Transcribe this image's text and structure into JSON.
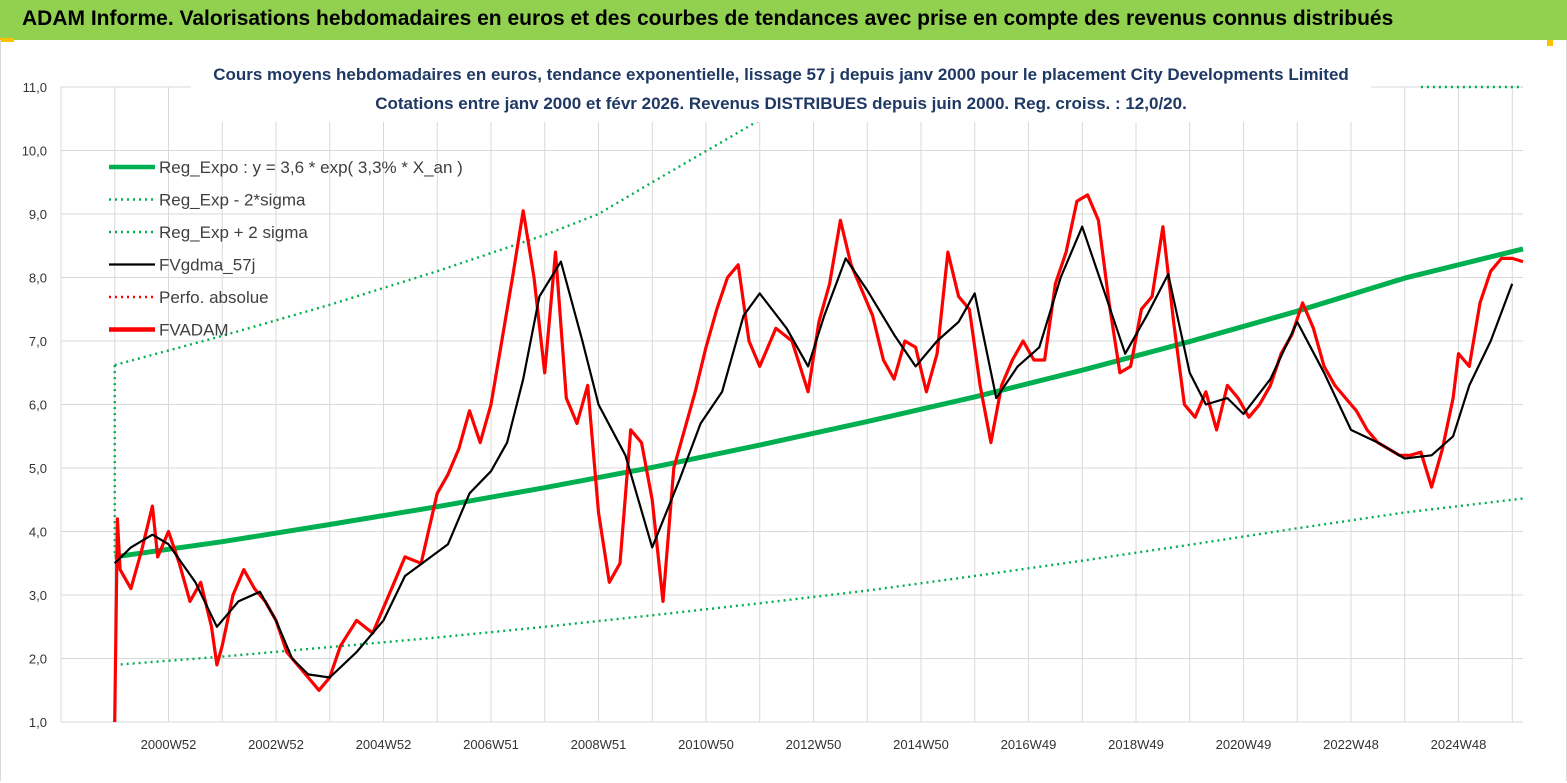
{
  "header": {
    "title": "ADAM Informe. Valorisations hebdomadaires en euros et des courbes de tendances avec prise en compte des revenus connus distribués"
  },
  "colors": {
    "banner": "#92d050",
    "accent": "#ffc000",
    "trend": "#00b050",
    "smooth": "#000000",
    "price": "#ff0000",
    "grid": "#d9d9d9"
  },
  "chart_data": {
    "type": "line",
    "title": "Cours moyens hebdomadaires en euros, tendance exponentielle, lissage 57 j depuis janv 2000  pour le placement City Developments Limited",
    "subtitle": "Cotations entre janv 2000 et févr 2026. Revenus DISTRIBUES depuis juin 2000. Reg. croiss. : 12,0/20.",
    "xlabel": "",
    "ylabel": "",
    "ylim": [
      1,
      11
    ],
    "xlim": [
      1999.0,
      2026.2
    ],
    "grid": true,
    "legend_position": "top-left",
    "y_ticks": [
      "1,0",
      "2,0",
      "3,0",
      "4,0",
      "5,0",
      "6,0",
      "7,0",
      "8,0",
      "9,0",
      "10,0",
      "11,0"
    ],
    "x_ticks": [
      {
        "label": "2000W52",
        "x": 2001.0
      },
      {
        "label": "2002W52",
        "x": 2003.0
      },
      {
        "label": "2004W52",
        "x": 2005.0
      },
      {
        "label": "2006W51",
        "x": 2007.0
      },
      {
        "label": "2008W51",
        "x": 2009.0
      },
      {
        "label": "2010W50",
        "x": 2011.0
      },
      {
        "label": "2012W50",
        "x": 2013.0
      },
      {
        "label": "2014W50",
        "x": 2015.0
      },
      {
        "label": "2016W49",
        "x": 2017.0
      },
      {
        "label": "2018W49",
        "x": 2019.0
      },
      {
        "label": "2020W49",
        "x": 2021.0
      },
      {
        "label": "2022W48",
        "x": 2023.0
      },
      {
        "label": "2024W48",
        "x": 2025.0
      }
    ],
    "series": [
      {
        "name": "Reg_Expo : y = 3,6 * exp( 3,3% *  X_an )",
        "style": "solid-thick",
        "color": "#00b050",
        "x": [
          2000.0,
          2002.0,
          2004.0,
          2006.0,
          2008.0,
          2010.0,
          2012.0,
          2014.0,
          2016.0,
          2018.0,
          2020.0,
          2022.0,
          2024.0,
          2026.2
        ],
        "y": [
          3.6,
          3.84,
          4.11,
          4.39,
          4.69,
          5.01,
          5.36,
          5.73,
          6.12,
          6.54,
          6.99,
          7.47,
          7.99,
          8.45
        ]
      },
      {
        "name": "Reg_Exp - 2*sigma",
        "style": "dotted",
        "color": "#00b050",
        "x": [
          2000.0,
          2002.0,
          2004.0,
          2006.0,
          2008.0,
          2010.0,
          2012.0,
          2014.0,
          2016.0,
          2018.0,
          2020.0,
          2022.0,
          2024.0,
          2026.2
        ],
        "y": [
          1.9,
          2.03,
          2.18,
          2.33,
          2.5,
          2.68,
          2.87,
          3.07,
          3.3,
          3.54,
          3.79,
          4.05,
          4.3,
          4.52
        ]
      },
      {
        "name": "Reg_Exp + 2 sigma",
        "style": "dotted",
        "color": "#00b050",
        "x": [
          2000.0,
          2002.0,
          2004.0,
          2006.0,
          2008.0,
          2009.0,
          2010.0,
          2011.0,
          2012.0,
          2013.0,
          2014.0
        ],
        "y": [
          6.62,
          7.08,
          7.57,
          8.1,
          8.67,
          9.0,
          9.5,
          9.99,
          10.48,
          10.97,
          11.45
        ],
        "x_right": [
          2024.3,
          2026.2
        ],
        "y_right": [
          11.0,
          11.0
        ]
      },
      {
        "name": "FVgdma_57j",
        "style": "solid",
        "color": "#000000",
        "x": [
          2000.0,
          2000.3,
          2000.7,
          2001.0,
          2001.5,
          2001.9,
          2002.3,
          2002.7,
          2003.0,
          2003.3,
          2003.6,
          2004.0,
          2004.5,
          2005.0,
          2005.4,
          2005.8,
          2006.2,
          2006.6,
          2007.0,
          2007.3,
          2007.6,
          2007.9,
          2008.3,
          2008.7,
          2009.0,
          2009.5,
          2010.0,
          2010.5,
          2010.9,
          2011.3,
          2011.7,
          2012.0,
          2012.5,
          2012.9,
          2013.2,
          2013.6,
          2014.0,
          2014.5,
          2014.9,
          2015.3,
          2015.7,
          2016.0,
          2016.4,
          2016.8,
          2017.2,
          2017.6,
          2018.0,
          2018.4,
          2018.8,
          2019.2,
          2019.6,
          2020.0,
          2020.3,
          2020.7,
          2021.0,
          2021.5,
          2022.0,
          2022.5,
          2023.0,
          2023.5,
          2024.0,
          2024.5,
          2024.9,
          2025.2,
          2025.6,
          2026.0
        ],
        "y": [
          3.5,
          3.75,
          3.95,
          3.8,
          3.2,
          2.5,
          2.9,
          3.05,
          2.6,
          2.0,
          1.75,
          1.7,
          2.1,
          2.6,
          3.3,
          3.55,
          3.8,
          4.6,
          4.95,
          5.4,
          6.4,
          7.7,
          8.25,
          7.0,
          6.0,
          5.2,
          3.75,
          4.8,
          5.7,
          6.2,
          7.4,
          7.75,
          7.2,
          6.6,
          7.4,
          8.3,
          7.8,
          7.1,
          6.6,
          7.0,
          7.3,
          7.75,
          6.1,
          6.6,
          6.9,
          8.0,
          8.8,
          7.8,
          6.8,
          7.4,
          8.05,
          6.5,
          6.0,
          6.1,
          5.85,
          6.4,
          7.3,
          6.5,
          5.6,
          5.4,
          5.15,
          5.2,
          5.5,
          6.3,
          7.0,
          7.9
        ]
      },
      {
        "name": "Perfo. absolue",
        "style": "dotted",
        "color": "#ff0000",
        "x": [],
        "y": []
      },
      {
        "name": "FVADAM",
        "style": "solid-thick",
        "color": "#ff0000",
        "x": [
          2000.0,
          2000.05,
          2000.1,
          2000.3,
          2000.5,
          2000.7,
          2000.8,
          2001.0,
          2001.2,
          2001.4,
          2001.6,
          2001.8,
          2001.9,
          2002.0,
          2002.2,
          2002.4,
          2002.6,
          2002.8,
          2003.0,
          2003.2,
          2003.4,
          2003.6,
          2003.8,
          2004.0,
          2004.2,
          2004.5,
          2004.8,
          2005.1,
          2005.4,
          2005.7,
          2006.0,
          2006.2,
          2006.4,
          2006.6,
          2006.8,
          2007.0,
          2007.2,
          2007.4,
          2007.6,
          2007.8,
          2008.0,
          2008.2,
          2008.4,
          2008.6,
          2008.8,
          2009.0,
          2009.2,
          2009.4,
          2009.6,
          2009.8,
          2010.0,
          2010.2,
          2010.4,
          2010.6,
          2010.8,
          2011.0,
          2011.2,
          2011.4,
          2011.6,
          2011.8,
          2012.0,
          2012.3,
          2012.6,
          2012.9,
          2013.1,
          2013.3,
          2013.5,
          2013.7,
          2013.9,
          2014.1,
          2014.3,
          2014.5,
          2014.7,
          2014.9,
          2015.1,
          2015.3,
          2015.5,
          2015.7,
          2015.9,
          2016.1,
          2016.3,
          2016.5,
          2016.7,
          2016.9,
          2017.1,
          2017.3,
          2017.5,
          2017.7,
          2017.9,
          2018.1,
          2018.3,
          2018.5,
          2018.7,
          2018.9,
          2019.1,
          2019.3,
          2019.5,
          2019.7,
          2019.9,
          2020.1,
          2020.3,
          2020.5,
          2020.7,
          2020.9,
          2021.1,
          2021.3,
          2021.5,
          2021.7,
          2021.9,
          2022.1,
          2022.3,
          2022.5,
          2022.7,
          2022.9,
          2023.1,
          2023.3,
          2023.5,
          2023.7,
          2023.9,
          2024.1,
          2024.3,
          2024.5,
          2024.7,
          2024.9,
          2025.0,
          2025.2,
          2025.4,
          2025.6,
          2025.8,
          2026.0,
          2026.2
        ],
        "y": [
          1.0,
          4.2,
          3.4,
          3.1,
          3.7,
          4.4,
          3.6,
          4.0,
          3.5,
          2.9,
          3.2,
          2.5,
          1.9,
          2.2,
          3.0,
          3.4,
          3.1,
          2.9,
          2.6,
          2.1,
          1.9,
          1.7,
          1.5,
          1.7,
          2.2,
          2.6,
          2.4,
          3.0,
          3.6,
          3.5,
          4.6,
          4.9,
          5.3,
          5.9,
          5.4,
          6.0,
          7.0,
          8.0,
          9.05,
          8.0,
          6.5,
          8.4,
          6.1,
          5.7,
          6.3,
          4.3,
          3.2,
          3.5,
          5.6,
          5.4,
          4.5,
          2.9,
          5.0,
          5.6,
          6.2,
          6.9,
          7.5,
          8.0,
          8.2,
          7.0,
          6.6,
          7.2,
          7.0,
          6.2,
          7.3,
          7.9,
          8.9,
          8.2,
          7.8,
          7.4,
          6.7,
          6.4,
          7.0,
          6.9,
          6.2,
          6.8,
          8.4,
          7.7,
          7.5,
          6.3,
          5.4,
          6.3,
          6.7,
          7.0,
          6.7,
          6.7,
          7.9,
          8.4,
          9.2,
          9.3,
          8.9,
          7.6,
          6.5,
          6.6,
          7.5,
          7.7,
          8.8,
          7.3,
          6.0,
          5.8,
          6.2,
          5.6,
          6.3,
          6.1,
          5.8,
          6.0,
          6.3,
          6.8,
          7.1,
          7.6,
          7.2,
          6.6,
          6.3,
          6.1,
          5.9,
          5.6,
          5.4,
          5.3,
          5.2,
          5.2,
          5.25,
          4.7,
          5.3,
          6.1,
          6.8,
          6.6,
          7.6,
          8.1,
          8.3,
          8.3,
          8.25
        ]
      }
    ]
  }
}
